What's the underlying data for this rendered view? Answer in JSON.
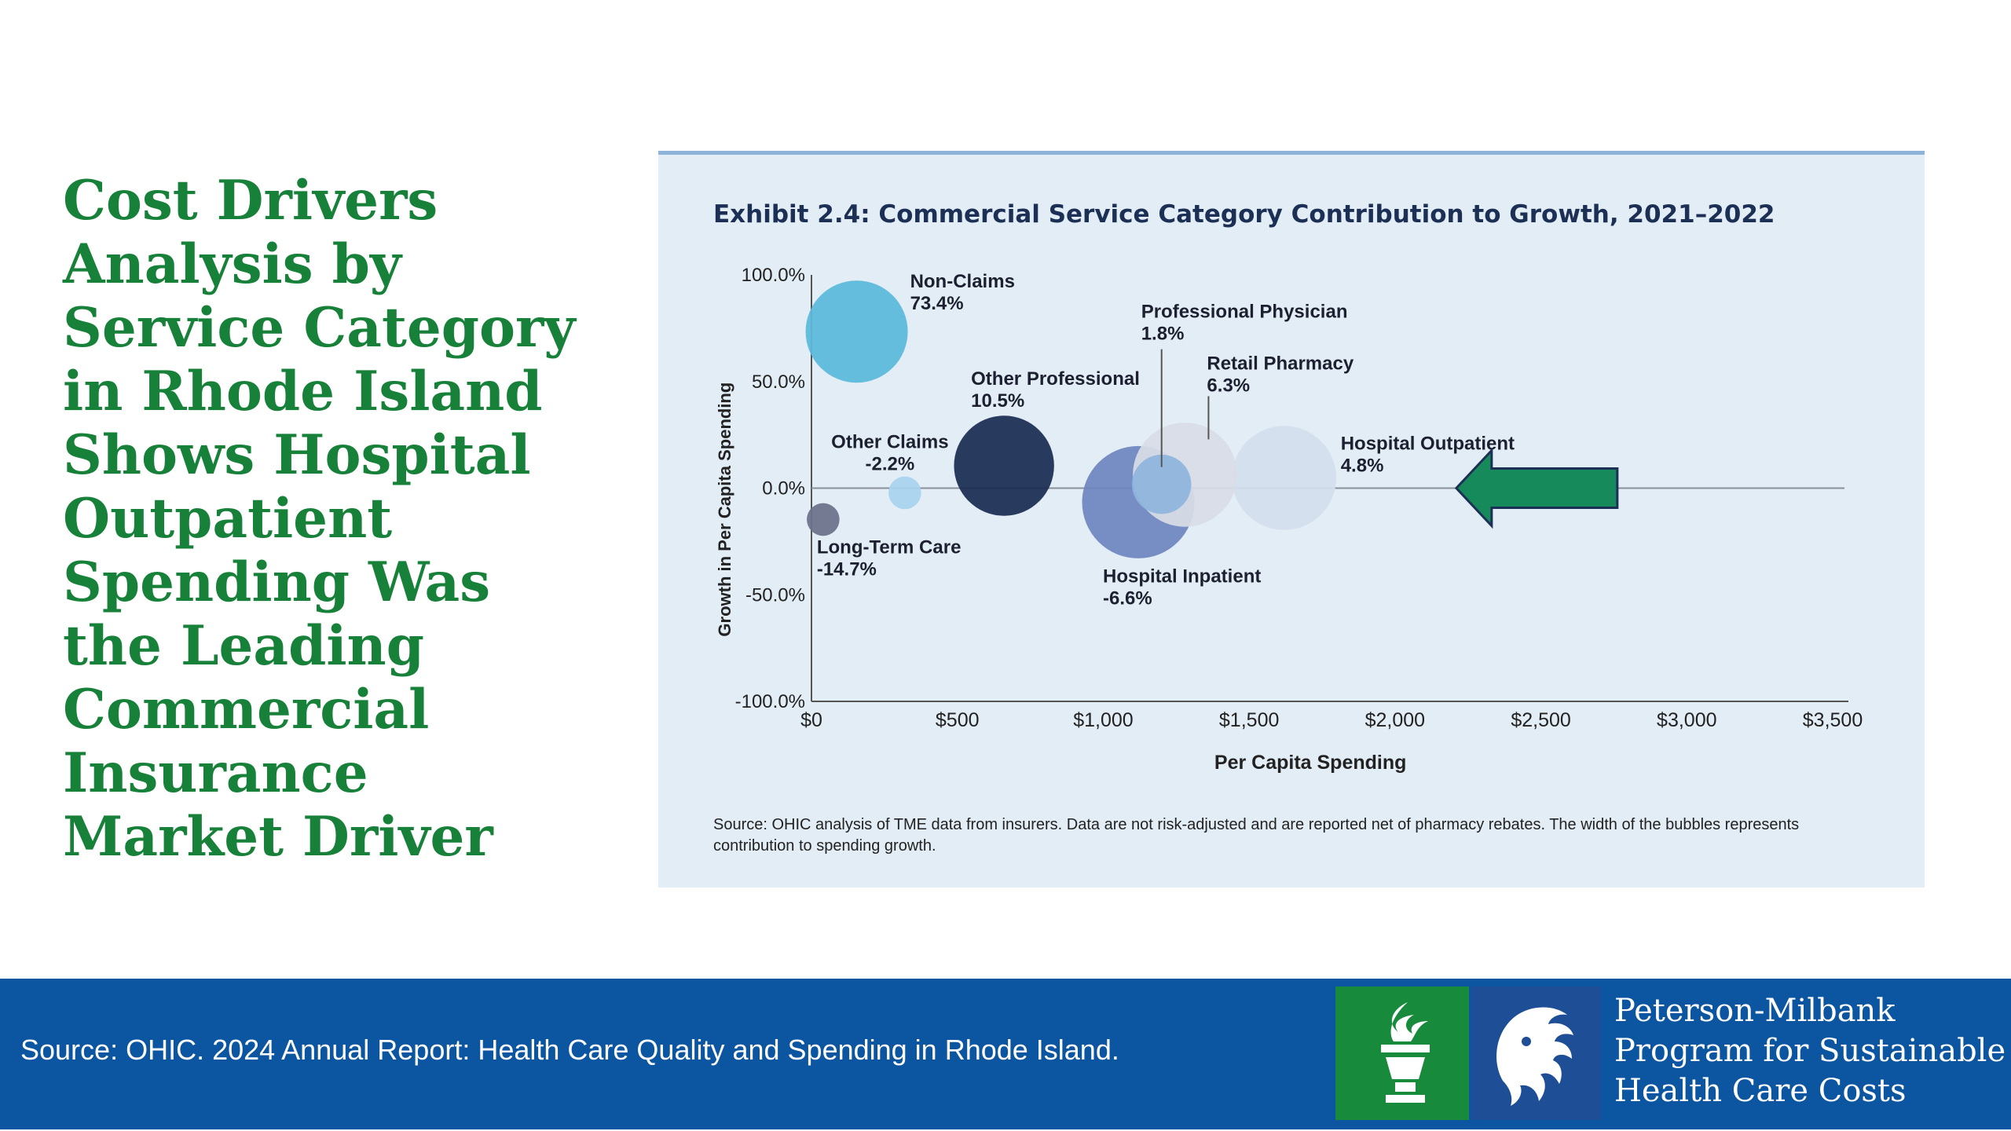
{
  "slide": {
    "title_lines": [
      "Cost Drivers",
      "Analysis by",
      "Service Category",
      "in Rhode Island",
      "Shows Hospital",
      "Outpatient",
      "Spending Was",
      "the Leading",
      "Commercial",
      "Insurance",
      "Market Driver"
    ]
  },
  "chart_data": {
    "type": "scatter",
    "title": "Exhibit 2.4: Commercial Service Category Contribution to Growth, 2021–2022",
    "xlabel": "Per Capita Spending",
    "ylabel": "Growth in Per Capita Spending",
    "xlim": [
      0,
      3500
    ],
    "ylim": [
      -100,
      100
    ],
    "x_ticks": [
      "$0",
      "$500",
      "$1,000",
      "$1,500",
      "$2,000",
      "$2,500",
      "$3,000",
      "$3,500"
    ],
    "x_tick_values": [
      0,
      500,
      1000,
      1500,
      2000,
      2500,
      3000,
      3500
    ],
    "y_ticks": [
      "100.0%",
      "50.0%",
      "0.0%",
      "-50.0%",
      "-100.0%"
    ],
    "y_tick_values": [
      100,
      50,
      0,
      -50,
      -100
    ],
    "series": [
      {
        "label": "Non-Claims",
        "value_label": "73.4%",
        "x": 155,
        "y": 73.4,
        "size": 50,
        "color": "#5bb9da"
      },
      {
        "label": "Other Claims",
        "value_label": "-2.2%",
        "x": 320,
        "y": -2.2,
        "size": 16,
        "color": "#a9d3ee"
      },
      {
        "label": "Long-Term Care",
        "value_label": "-14.7%",
        "x": 40,
        "y": -14.7,
        "size": 16,
        "color": "#6a7189"
      },
      {
        "label": "Other Professional",
        "value_label": "10.5%",
        "x": 660,
        "y": 10.5,
        "size": 49,
        "color": "#1a2c52"
      },
      {
        "label": "Hospital Inpatient",
        "value_label": "-6.6%",
        "x": 1120,
        "y": -6.6,
        "size": 55,
        "color": "#6e86c0"
      },
      {
        "label": "Retail Pharmacy",
        "value_label": "6.3%",
        "x": 1280,
        "y": 6.3,
        "size": 51,
        "color": "#d9dde6"
      },
      {
        "label": "Professional Physician",
        "value_label": "1.8%",
        "x": 1200,
        "y": 1.8,
        "size": 29,
        "color": "#8fb6dd"
      },
      {
        "label": "Hospital Outpatient",
        "value_label": "4.8%",
        "x": 1620,
        "y": 4.8,
        "size": 51,
        "color": "#d4dfee"
      }
    ],
    "annotation_arrow_color": "#178a5c",
    "source": "Source: OHIC analysis of TME data from insurers. Data are not risk-adjusted and are reported net of pharmacy rebates. The width of the bubbles represents contribution to spending growth."
  },
  "footer": {
    "source": "Source: OHIC. 2024 Annual Report: Health Care Quality and Spending in Rhode Island.",
    "logo_text_lines": [
      "Peterson-Milbank",
      "Program for Sustainable",
      "Health Care Costs"
    ]
  },
  "colors": {
    "title_green": "#17813a",
    "footer_blue": "#0b55a1",
    "panel_bg": "#e3edf5"
  }
}
